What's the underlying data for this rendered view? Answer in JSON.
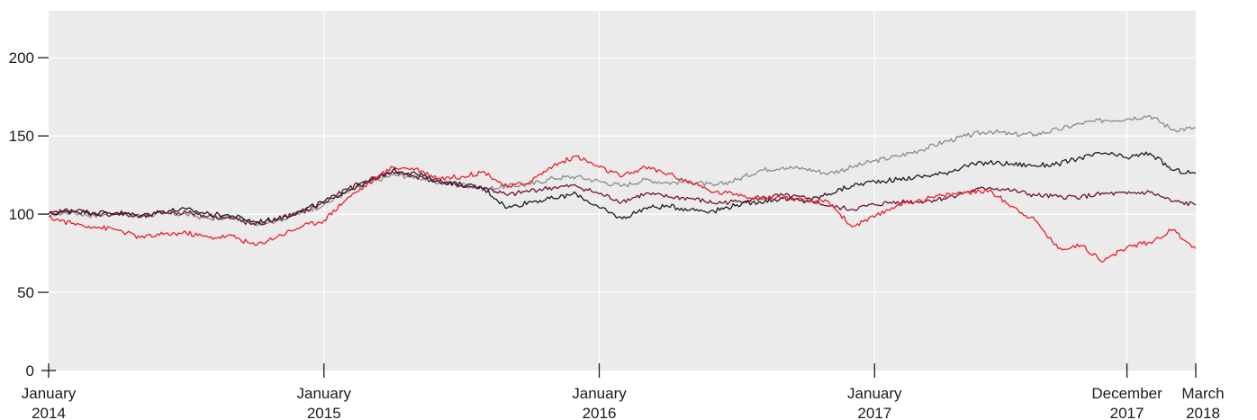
{
  "chart_data": {
    "type": "line",
    "title": "",
    "xlabel": "",
    "ylabel": "",
    "ylim": [
      0,
      230
    ],
    "y_ticks": [
      0,
      50,
      100,
      150,
      200
    ],
    "x_range": [
      "2014-01",
      "2018-03"
    ],
    "x_ticks": [
      {
        "date": "2014-01",
        "lines": [
          "January",
          "2014"
        ]
      },
      {
        "date": "2015-01",
        "lines": [
          "January",
          "2015"
        ]
      },
      {
        "date": "2016-01",
        "lines": [
          "January",
          "2016"
        ]
      },
      {
        "date": "2017-01",
        "lines": [
          "January",
          "2017"
        ]
      },
      {
        "date": "2017-12",
        "lines": [
          "December",
          "2017"
        ]
      },
      {
        "date": "2018-03",
        "lines": [
          "March",
          "2018"
        ]
      }
    ],
    "grid": true,
    "legend": "none",
    "plot_background": "#ebebeb",
    "series": [
      {
        "color": "#8a8a92",
        "points": [
          [
            "2014-01",
            100
          ],
          [
            "2014-02",
            101
          ],
          [
            "2014-03",
            99
          ],
          [
            "2014-04",
            101
          ],
          [
            "2014-05",
            99
          ],
          [
            "2014-06",
            100
          ],
          [
            "2014-07",
            100
          ],
          [
            "2014-08",
            97
          ],
          [
            "2014-09",
            98
          ],
          [
            "2014-10",
            94
          ],
          [
            "2014-11",
            96
          ],
          [
            "2014-12",
            101
          ],
          [
            "2015-01",
            106
          ],
          [
            "2015-02",
            114
          ],
          [
            "2015-03",
            120
          ],
          [
            "2015-04",
            125
          ],
          [
            "2015-05",
            124
          ],
          [
            "2015-06",
            120
          ],
          [
            "2015-07",
            119
          ],
          [
            "2015-08",
            116
          ],
          [
            "2015-09",
            118
          ],
          [
            "2015-10",
            119
          ],
          [
            "2015-11",
            123
          ],
          [
            "2015-12",
            124
          ],
          [
            "2016-01",
            121
          ],
          [
            "2016-02",
            118
          ],
          [
            "2016-03",
            122
          ],
          [
            "2016-04",
            120
          ],
          [
            "2016-05",
            121
          ],
          [
            "2016-06",
            118
          ],
          [
            "2016-07",
            122
          ],
          [
            "2016-08",
            128
          ],
          [
            "2016-09",
            130
          ],
          [
            "2016-10",
            129
          ],
          [
            "2016-11",
            126
          ],
          [
            "2016-12",
            130
          ],
          [
            "2017-01",
            134
          ],
          [
            "2017-02",
            137
          ],
          [
            "2017-03",
            141
          ],
          [
            "2017-04",
            146
          ],
          [
            "2017-05",
            150
          ],
          [
            "2017-06",
            153
          ],
          [
            "2017-07",
            151
          ],
          [
            "2017-08",
            151
          ],
          [
            "2017-09",
            154
          ],
          [
            "2017-10",
            158
          ],
          [
            "2017-11",
            160
          ],
          [
            "2017-12",
            161
          ],
          [
            "2018-01",
            163
          ],
          [
            "2018-02",
            154
          ],
          [
            "2018-03",
            155
          ]
        ]
      },
      {
        "color": "#1b1b24",
        "points": [
          [
            "2014-01",
            100
          ],
          [
            "2014-02",
            102
          ],
          [
            "2014-03",
            101
          ],
          [
            "2014-04",
            101
          ],
          [
            "2014-05",
            99
          ],
          [
            "2014-06",
            102
          ],
          [
            "2014-07",
            103
          ],
          [
            "2014-08",
            100
          ],
          [
            "2014-09",
            99
          ],
          [
            "2014-10",
            95
          ],
          [
            "2014-11",
            97
          ],
          [
            "2014-12",
            102
          ],
          [
            "2015-01",
            108
          ],
          [
            "2015-02",
            115
          ],
          [
            "2015-03",
            121
          ],
          [
            "2015-04",
            128
          ],
          [
            "2015-05",
            126
          ],
          [
            "2015-06",
            121
          ],
          [
            "2015-07",
            119
          ],
          [
            "2015-08",
            116
          ],
          [
            "2015-09",
            104
          ],
          [
            "2015-10",
            108
          ],
          [
            "2015-11",
            110
          ],
          [
            "2015-12",
            113
          ],
          [
            "2016-01",
            104
          ],
          [
            "2016-02",
            97
          ],
          [
            "2016-03",
            104
          ],
          [
            "2016-04",
            105
          ],
          [
            "2016-05",
            103
          ],
          [
            "2016-06",
            102
          ],
          [
            "2016-07",
            106
          ],
          [
            "2016-08",
            108
          ],
          [
            "2016-09",
            110
          ],
          [
            "2016-10",
            108
          ],
          [
            "2016-11",
            113
          ],
          [
            "2016-12",
            118
          ],
          [
            "2017-01",
            121
          ],
          [
            "2017-02",
            122
          ],
          [
            "2017-03",
            124
          ],
          [
            "2017-04",
            126
          ],
          [
            "2017-05",
            131
          ],
          [
            "2017-06",
            133
          ],
          [
            "2017-07",
            132
          ],
          [
            "2017-08",
            131
          ],
          [
            "2017-09",
            132
          ],
          [
            "2017-10",
            136
          ],
          [
            "2017-11",
            139
          ],
          [
            "2017-12",
            136
          ],
          [
            "2018-01",
            139
          ],
          [
            "2018-02",
            128
          ],
          [
            "2018-03",
            126
          ]
        ]
      },
      {
        "color": "#6e1430",
        "points": [
          [
            "2014-01",
            100
          ],
          [
            "2014-02",
            103
          ],
          [
            "2014-03",
            100
          ],
          [
            "2014-04",
            100
          ],
          [
            "2014-05",
            98
          ],
          [
            "2014-06",
            101
          ],
          [
            "2014-07",
            101
          ],
          [
            "2014-08",
            99
          ],
          [
            "2014-09",
            97
          ],
          [
            "2014-10",
            93
          ],
          [
            "2014-11",
            97
          ],
          [
            "2014-12",
            101
          ],
          [
            "2015-01",
            107
          ],
          [
            "2015-02",
            116
          ],
          [
            "2015-03",
            122
          ],
          [
            "2015-04",
            127
          ],
          [
            "2015-05",
            124
          ],
          [
            "2015-06",
            121
          ],
          [
            "2015-07",
            118
          ],
          [
            "2015-08",
            117
          ],
          [
            "2015-09",
            112
          ],
          [
            "2015-10",
            115
          ],
          [
            "2015-11",
            117
          ],
          [
            "2015-12",
            118
          ],
          [
            "2016-01",
            113
          ],
          [
            "2016-02",
            108
          ],
          [
            "2016-03",
            113
          ],
          [
            "2016-04",
            111
          ],
          [
            "2016-05",
            110
          ],
          [
            "2016-06",
            107
          ],
          [
            "2016-07",
            108
          ],
          [
            "2016-08",
            110
          ],
          [
            "2016-09",
            112
          ],
          [
            "2016-10",
            110
          ],
          [
            "2016-11",
            105
          ],
          [
            "2016-12",
            103
          ],
          [
            "2017-01",
            106
          ],
          [
            "2017-02",
            108
          ],
          [
            "2017-03",
            108
          ],
          [
            "2017-04",
            110
          ],
          [
            "2017-05",
            114
          ],
          [
            "2017-06",
            117
          ],
          [
            "2017-07",
            115
          ],
          [
            "2017-08",
            112
          ],
          [
            "2017-09",
            111
          ],
          [
            "2017-10",
            111
          ],
          [
            "2017-11",
            113
          ],
          [
            "2017-12",
            113
          ],
          [
            "2018-01",
            114
          ],
          [
            "2018-02",
            108
          ],
          [
            "2018-03",
            106
          ]
        ]
      },
      {
        "color": "#e8202a",
        "points": [
          [
            "2014-01",
            98
          ],
          [
            "2014-02",
            94
          ],
          [
            "2014-03",
            92
          ],
          [
            "2014-04",
            90
          ],
          [
            "2014-05",
            85
          ],
          [
            "2014-06",
            87
          ],
          [
            "2014-07",
            88
          ],
          [
            "2014-08",
            85
          ],
          [
            "2014-09",
            86
          ],
          [
            "2014-10",
            80
          ],
          [
            "2014-11",
            86
          ],
          [
            "2014-12",
            92
          ],
          [
            "2015-01",
            96
          ],
          [
            "2015-02",
            110
          ],
          [
            "2015-03",
            120
          ],
          [
            "2015-04",
            130
          ],
          [
            "2015-05",
            129
          ],
          [
            "2015-06",
            123
          ],
          [
            "2015-07",
            124
          ],
          [
            "2015-08",
            127
          ],
          [
            "2015-09",
            117
          ],
          [
            "2015-10",
            121
          ],
          [
            "2015-11",
            131
          ],
          [
            "2015-12",
            137
          ],
          [
            "2016-01",
            130
          ],
          [
            "2016-02",
            124
          ],
          [
            "2016-03",
            130
          ],
          [
            "2016-04",
            126
          ],
          [
            "2016-05",
            120
          ],
          [
            "2016-06",
            114
          ],
          [
            "2016-07",
            113
          ],
          [
            "2016-08",
            110
          ],
          [
            "2016-09",
            111
          ],
          [
            "2016-10",
            108
          ],
          [
            "2016-11",
            108
          ],
          [
            "2016-12",
            92
          ],
          [
            "2017-01",
            98
          ],
          [
            "2017-02",
            106
          ],
          [
            "2017-03",
            109
          ],
          [
            "2017-04",
            112
          ],
          [
            "2017-05",
            114
          ],
          [
            "2017-06",
            115
          ],
          [
            "2017-07",
            105
          ],
          [
            "2017-08",
            96
          ],
          [
            "2017-09",
            78
          ],
          [
            "2017-10",
            80
          ],
          [
            "2017-11",
            70
          ],
          [
            "2017-12",
            79
          ],
          [
            "2018-01",
            82
          ],
          [
            "2018-02",
            90
          ],
          [
            "2018-03",
            78
          ]
        ]
      }
    ]
  }
}
